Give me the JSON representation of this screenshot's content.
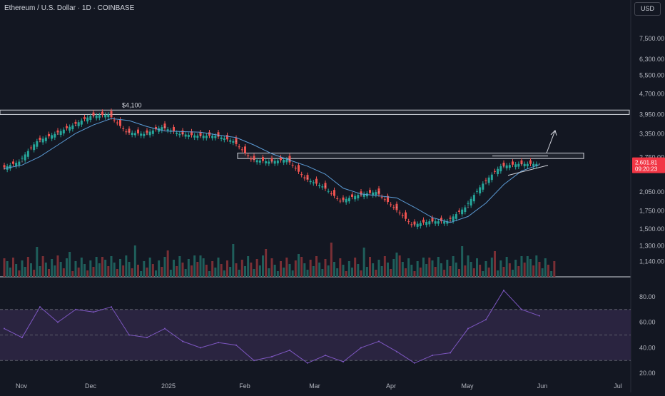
{
  "header": {
    "title": "Ethereum / U.S. Dollar · 1D · COINBASE",
    "currency": "USD"
  },
  "colors": {
    "bg": "#131722",
    "up": "#26a69a",
    "down": "#ef5350",
    "ma": "#5b9bd5",
    "rsi": "#7e57c2",
    "rsi_band": "#2a2440",
    "line": "#d1d4dc",
    "badge": "#f23645"
  },
  "price_axis": {
    "ticks": [
      "7,500.00",
      "6,300.00",
      "5,500.00",
      "4,700.00",
      "3,950.00",
      "3,350.00",
      "2,750.00",
      "2,050.00",
      "1,750.00",
      "1,500.00",
      "1,300.00",
      "1,140.00"
    ]
  },
  "rsi_axis": {
    "ticks": [
      "80.00",
      "60.00",
      "40.00",
      "20.00"
    ]
  },
  "time_axis": {
    "ticks": [
      "Nov",
      "Dec",
      "2025",
      "Feb",
      "Mar",
      "Apr",
      "May",
      "Jun",
      "Jul"
    ]
  },
  "price_badge": {
    "price": "2,601.81",
    "countdown": "09:20:23"
  },
  "annotations": {
    "high_label": "$4,100"
  },
  "chart_data": [
    {
      "type": "line",
      "name": "ETH/USD 1D price (close, approx.)",
      "scale": "log",
      "x": [
        "2024-10-28",
        "2024-11-04",
        "2024-11-11",
        "2024-11-18",
        "2024-11-25",
        "2024-12-02",
        "2024-12-09",
        "2024-12-16",
        "2024-12-23",
        "2024-12-30",
        "2025-01-06",
        "2025-01-13",
        "2025-01-20",
        "2025-01-27",
        "2025-02-03",
        "2025-02-10",
        "2025-02-17",
        "2025-02-24",
        "2025-03-03",
        "2025-03-10",
        "2025-03-17",
        "2025-03-24",
        "2025-03-31",
        "2025-04-07",
        "2025-04-14",
        "2025-04-21",
        "2025-04-28",
        "2025-05-05",
        "2025-05-12",
        "2025-05-19",
        "2025-05-26"
      ],
      "values": [
        2500,
        2650,
        3150,
        3350,
        3600,
        3900,
        3950,
        3400,
        3350,
        3550,
        3350,
        3300,
        3300,
        3150,
        2700,
        2650,
        2700,
        2300,
        2150,
        1900,
        2000,
        2050,
        1800,
        1550,
        1600,
        1600,
        1800,
        2200,
        2550,
        2600,
        2600
      ],
      "resistance_zones": [
        [
          3950,
          4100
        ],
        [
          2720,
          2850
        ]
      ],
      "ylim": [
        1000,
        9000
      ]
    },
    {
      "type": "line",
      "name": "RSI",
      "x": [
        "2024-10-28",
        "2024-11-04",
        "2024-11-11",
        "2024-11-18",
        "2024-11-25",
        "2024-12-02",
        "2024-12-09",
        "2024-12-16",
        "2024-12-23",
        "2024-12-30",
        "2025-01-06",
        "2025-01-13",
        "2025-01-20",
        "2025-01-27",
        "2025-02-03",
        "2025-02-10",
        "2025-02-17",
        "2025-02-24",
        "2025-03-03",
        "2025-03-10",
        "2025-03-17",
        "2025-03-24",
        "2025-03-31",
        "2025-04-07",
        "2025-04-14",
        "2025-04-21",
        "2025-04-28",
        "2025-05-05",
        "2025-05-12",
        "2025-05-19",
        "2025-05-26"
      ],
      "values": [
        55,
        48,
        72,
        60,
        70,
        68,
        72,
        50,
        48,
        55,
        45,
        40,
        44,
        42,
        30,
        33,
        38,
        28,
        34,
        29,
        40,
        45,
        37,
        28,
        34,
        36,
        55,
        62,
        85,
        70,
        65
      ],
      "ylim": [
        15,
        90
      ]
    }
  ]
}
